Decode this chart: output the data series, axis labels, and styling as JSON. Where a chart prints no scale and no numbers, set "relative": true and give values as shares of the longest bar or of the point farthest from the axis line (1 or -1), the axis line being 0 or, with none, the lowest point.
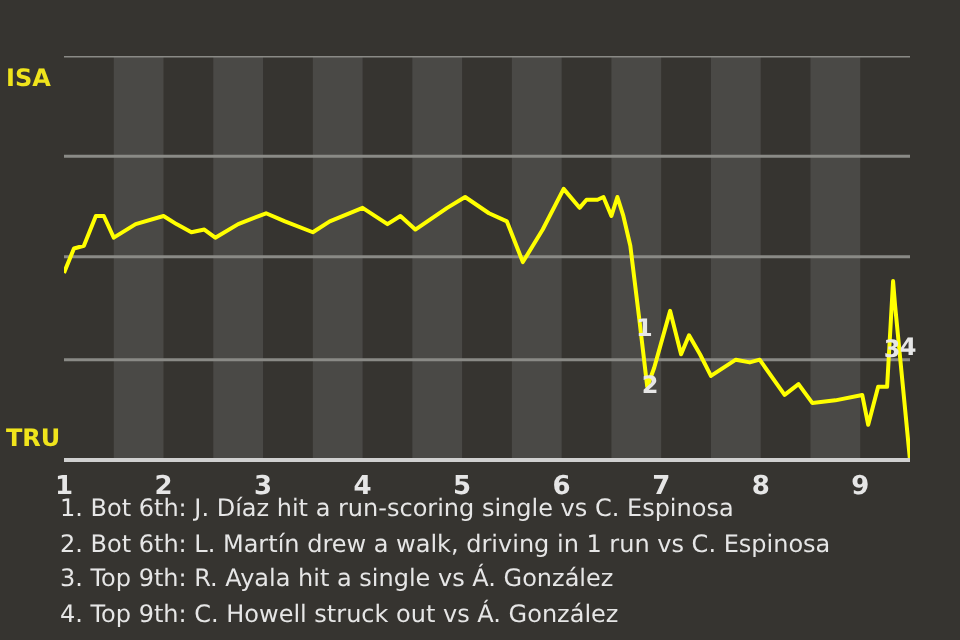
{
  "chart_data": {
    "type": "line",
    "x": [
      1,
      1.1,
      1.2,
      1.32,
      1.4,
      1.5,
      1.72,
      2,
      2.13,
      2.28,
      2.41,
      2.52,
      2.75,
      3.03,
      3.22,
      3.5,
      3.67,
      4,
      4.25,
      4.38,
      4.53,
      4.85,
      5.03,
      5.27,
      5.45,
      5.61,
      5.81,
      6.02,
      6.18,
      6.25,
      6.36,
      6.42,
      6.5,
      6.56,
      6.62,
      6.69,
      6.74,
      6.78,
      6.86,
      6.93,
      7.09,
      7.2,
      7.28,
      7.39,
      7.5,
      7.75,
      7.89,
      7.99,
      8.24,
      8.38,
      8.52,
      8.75,
      9.02,
      9.08,
      9.18,
      9.27,
      9.33,
      9.35,
      9.5
    ],
    "values": [
      0.69,
      0.78,
      0.79,
      0.9,
      0.9,
      0.82,
      0.87,
      0.9,
      0.87,
      0.84,
      0.85,
      0.82,
      0.87,
      0.91,
      0.88,
      0.84,
      0.88,
      0.93,
      0.87,
      0.9,
      0.85,
      0.93,
      0.97,
      0.91,
      0.88,
      0.73,
      0.85,
      1,
      0.93,
      0.96,
      0.96,
      0.97,
      0.9,
      0.97,
      0.9,
      0.79,
      0.64,
      0.52,
      0.27,
      0.34,
      0.55,
      0.39,
      0.46,
      0.39,
      0.31,
      0.37,
      0.36,
      0.37,
      0.24,
      0.28,
      0.21,
      0.22,
      0.24,
      0.13,
      0.27,
      0.27,
      0.66,
      0.57,
      0
    ],
    "relative": true,
    "color": "#ffff00",
    "xlim": [
      1,
      9.5
    ],
    "xticks": [
      1,
      2,
      3,
      4,
      5,
      6,
      7,
      8,
      9
    ],
    "marker": "none",
    "line_style": "solid",
    "ref_lines": [
      {
        "axis": "y",
        "value": 0.37,
        "color": "#8a8a86"
      },
      {
        "axis": "y",
        "value": 0.75,
        "color": "#8a8a86"
      },
      {
        "axis": "y",
        "value": 1.12,
        "color": "#8a8a86"
      },
      {
        "axis": "y",
        "value": 1.49,
        "color": "#8a8a86"
      }
    ],
    "bands": [
      {
        "axis": "x",
        "from": 1.5,
        "to": 2,
        "color": "#4a4946"
      },
      {
        "axis": "x",
        "from": 2.5,
        "to": 3,
        "color": "#4a4946"
      },
      {
        "axis": "x",
        "from": 3.5,
        "to": 4,
        "color": "#4a4946"
      },
      {
        "axis": "x",
        "from": 4.5,
        "to": 5,
        "color": "#4a4946"
      },
      {
        "axis": "x",
        "from": 5.5,
        "to": 6,
        "color": "#4a4946"
      },
      {
        "axis": "x",
        "from": 6.5,
        "to": 7,
        "color": "#4a4946"
      },
      {
        "axis": "x",
        "from": 7.5,
        "to": 8,
        "color": "#4a4946"
      },
      {
        "axis": "x",
        "from": 8.5,
        "to": 9,
        "color": "#4a4946"
      }
    ],
    "annotations": [
      "ISA",
      "TRU",
      {
        "text": "1",
        "x": 6.83,
        "y": 0.49
      },
      {
        "text": "2",
        "x": 6.89,
        "y": 0.28
      },
      {
        "text": "3",
        "x": 9.32,
        "y": 0.41
      },
      {
        "text": "4",
        "x": 9.48,
        "y": 0.42
      },
      "1. Bot 6th: J. Díaz hit a run-scoring single vs C. Espinosa",
      "2. Bot 6th: L. Martín drew a walk, driving in 1 run vs C. Espinosa",
      "3. Top 9th: R. Ayala hit a single vs Á. González",
      "4. Top 9th: C. Howell struck out vs Á. González"
    ]
  }
}
